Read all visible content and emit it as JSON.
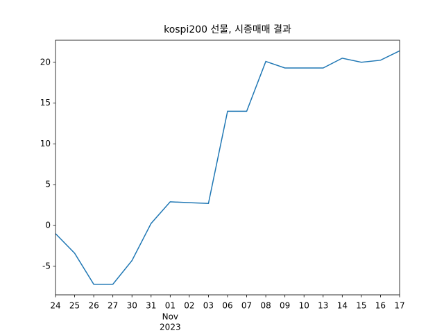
{
  "chart_data": {
    "type": "line",
    "title": "kospi200 선물, 시종매매 결과",
    "categories": [
      "24",
      "25",
      "26",
      "27",
      "30",
      "31",
      "01",
      "02",
      "03",
      "06",
      "07",
      "08",
      "09",
      "10",
      "13",
      "14",
      "15",
      "16",
      "17"
    ],
    "x_month_label": "Nov",
    "x_year_label": "2023",
    "series": [
      {
        "color": "#1f77b4",
        "values": [
          -1.0,
          -3.4,
          -7.2,
          -7.2,
          -4.3,
          0.25,
          2.9,
          2.8,
          2.7,
          14.0,
          14.0,
          20.1,
          19.3,
          19.3,
          19.3,
          20.5,
          20.0,
          20.25,
          21.4
        ]
      }
    ],
    "ylim": [
      -8.5,
      22.7
    ],
    "yticks": [
      -5,
      0,
      5,
      10,
      15,
      20
    ],
    "grid": false
  }
}
